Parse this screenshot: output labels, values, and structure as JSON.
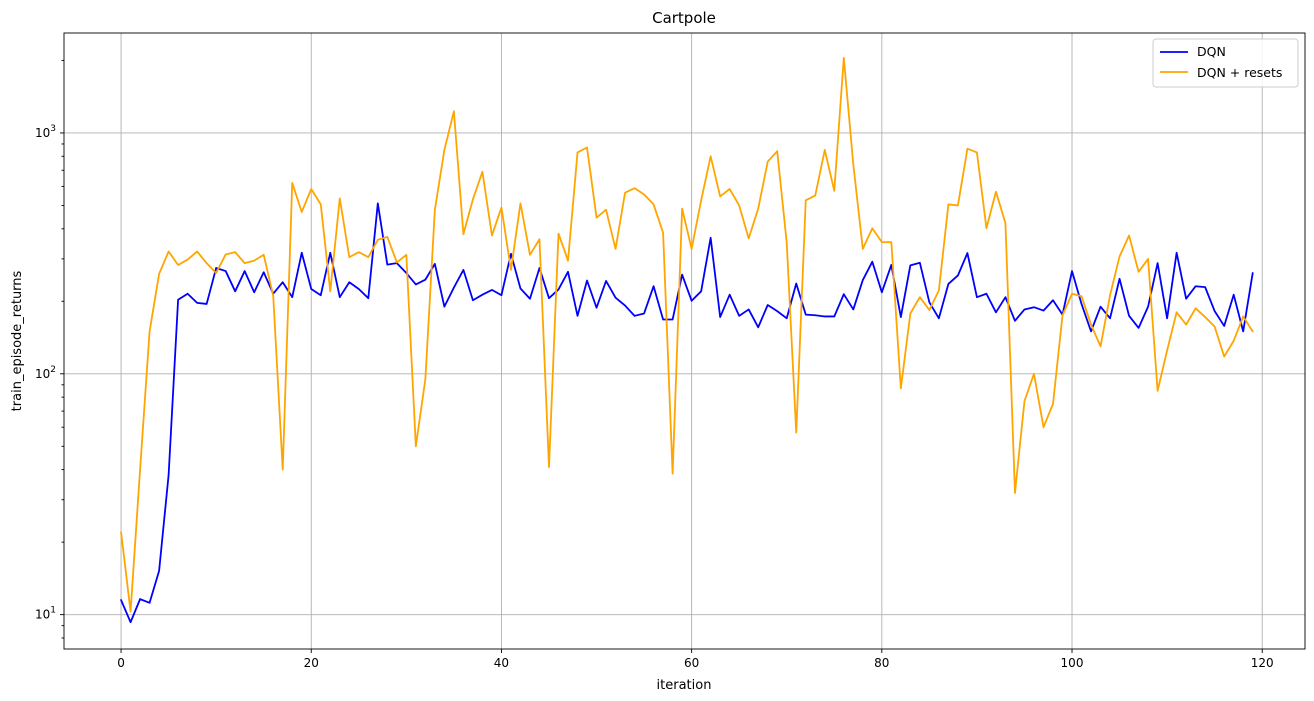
{
  "chart_data": {
    "type": "line",
    "title": "Cartpole",
    "xlabel": "iteration",
    "ylabel": "train_episode_returns",
    "yscale": "log",
    "xlim": [
      -6,
      124.5
    ],
    "ylim": [
      7.2,
      2600
    ],
    "grid": true,
    "legend_position": "top-right",
    "x_ticks": [
      0,
      20,
      40,
      60,
      80,
      100,
      120
    ],
    "x_tick_labels": [
      "0",
      "20",
      "40",
      "60",
      "80",
      "100",
      "120"
    ],
    "y_major_ticks": [
      10,
      100,
      1000
    ],
    "y_tick_base": "10",
    "y_tick_exps": [
      "1",
      "2",
      "3"
    ],
    "series": [
      {
        "name": "DQN",
        "color": "#0000ff",
        "values": [
          11.5,
          9.3,
          11.6,
          11.2,
          15.2,
          38,
          203,
          215,
          197,
          195,
          275,
          267,
          220,
          267,
          218,
          264,
          215,
          240,
          208,
          318,
          225,
          212,
          318,
          208,
          240,
          225,
          206,
          510,
          284,
          288,
          262,
          235,
          246,
          286,
          190,
          228,
          270,
          202,
          213,
          223,
          212,
          315,
          226,
          205,
          275,
          206,
          224,
          265,
          174,
          244,
          188,
          243,
          207,
          192,
          174,
          178,
          231,
          168,
          168,
          258,
          201,
          220,
          367,
          172,
          213,
          174,
          185,
          156,
          193,
          182,
          170,
          237,
          176,
          175,
          173,
          173,
          214,
          185,
          245,
          292,
          218,
          283,
          172,
          282,
          289,
          198,
          170,
          236,
          256,
          317,
          208,
          215,
          180,
          208,
          166,
          185,
          189,
          183,
          202,
          176,
          267,
          195,
          150,
          190,
          170,
          248,
          174,
          155,
          190,
          288,
          170,
          318,
          205,
          231,
          229,
          182,
          158,
          213,
          150,
          262
        ]
      },
      {
        "name": "DQN + resets",
        "color": "#ffa500",
        "values": [
          22,
          10.3,
          40,
          150,
          260,
          322,
          283,
          298,
          322,
          288,
          262,
          313,
          320,
          288,
          295,
          312,
          211,
          40,
          620,
          470,
          585,
          505,
          220,
          535,
          305,
          320,
          305,
          360,
          370,
          290,
          312,
          50,
          95,
          480,
          850,
          1230,
          380,
          530,
          690,
          375,
          490,
          270,
          510,
          312,
          362,
          41,
          382,
          295,
          830,
          870,
          445,
          480,
          330,
          565,
          590,
          555,
          505,
          385,
          38.5,
          485,
          330,
          525,
          800,
          545,
          585,
          500,
          365,
          485,
          760,
          840,
          350,
          57,
          525,
          550,
          850,
          575,
          2050,
          740,
          330,
          402,
          352,
          352,
          87,
          178,
          208,
          184,
          222,
          505,
          500,
          860,
          830,
          402,
          570,
          422,
          32,
          77,
          100,
          60,
          75,
          175,
          215,
          210,
          160,
          130,
          212,
          307,
          375,
          265,
          300,
          85,
          125,
          180,
          160,
          187,
          172,
          157,
          118,
          137,
          173,
          150
        ]
      }
    ]
  }
}
